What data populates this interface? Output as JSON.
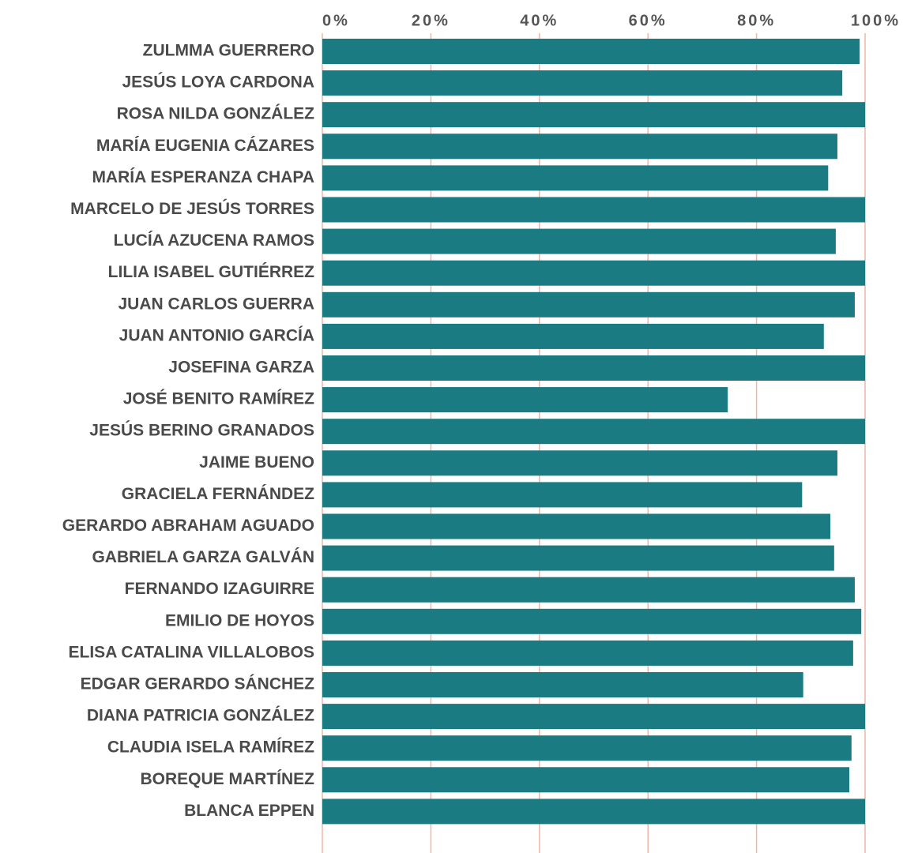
{
  "chart_data": {
    "type": "barh",
    "categories": [
      "ZULMMA GUERRERO",
      "JESÚS LOYA CARDONA",
      "ROSA NILDA GONZÁLEZ",
      "MARÍA EUGENIA CÁZARES",
      "MARÍA ESPERANZA CHAPA",
      "MARCELO DE JESÚS TORRES",
      "LUCÍA AZUCENA RAMOS",
      "LILIA ISABEL GUTIÉRREZ",
      "JUAN CARLOS GUERRA",
      "JUAN ANTONIO GARCÍA",
      "JOSEFINA GARZA",
      "JOSÉ BENITO RAMÍREZ",
      "JESÚS BERINO GRANADOS",
      "JAIME BUENO",
      "GRACIELA FERNÁNDEZ",
      "GERARDO ABRAHAM AGUADO",
      "GABRIELA GARZA GALVÁN",
      "FERNANDO IZAGUIRRE",
      "EMILIO DE HOYOS",
      "ELISA CATALINA VILLALOBOS",
      "EDGAR GERARDO SÁNCHEZ",
      "DIANA PATRICIA GONZÁLEZ",
      "CLAUDIA ISELA RAMÍREZ",
      "BOREQUE MARTÍNEZ",
      "BLANCA EPPEN"
    ],
    "values": [
      99,
      95.8,
      100,
      94.9,
      93.2,
      100,
      94.6,
      100,
      98.1,
      92.4,
      100,
      74.7,
      100,
      94.9,
      88.4,
      93.6,
      94.3,
      98.1,
      99.3,
      97.8,
      88.6,
      100,
      97.5,
      97.1,
      100
    ],
    "color": "#1a7b82",
    "xlim": [
      0,
      100
    ],
    "xticks": [
      {
        "value": 0,
        "label": "0%"
      },
      {
        "value": 20,
        "label": "20%"
      },
      {
        "value": 40,
        "label": "40%"
      },
      {
        "value": 60,
        "label": "60%"
      },
      {
        "value": 80,
        "label": "80%"
      },
      {
        "value": 100,
        "label": "100%"
      }
    ],
    "grid": true
  }
}
